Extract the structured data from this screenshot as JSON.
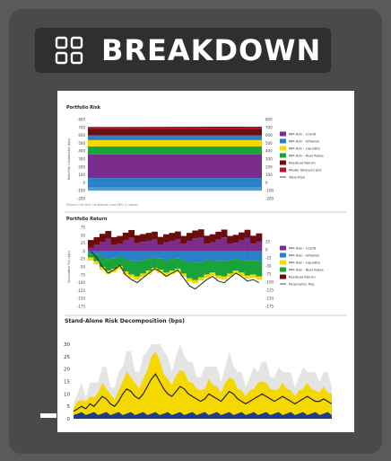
{
  "header": {
    "title": "BREAKDOWN",
    "icon": "grid-icon"
  },
  "colors": {
    "credit": "#7b2d8e",
    "inflation": "#2a7fc9",
    "liquidity": "#f5d800",
    "real_rates": "#1aa33a",
    "residual": "#6b0d0d",
    "model": "#b5122c",
    "total": "#222222"
  },
  "chart_data": [
    {
      "type": "area",
      "title": "Portfolio Risk",
      "ylabel": "Beta Risk Contribution (bps)",
      "footnote": "Product One Year Confidence Level 66% (1 sigma)",
      "ylim": [
        -200,
        800
      ],
      "y_ticks_left": [
        "800",
        "700",
        "600",
        "500",
        "400",
        "300",
        "200",
        "100",
        "0",
        "-100",
        "-200"
      ],
      "y_ticks_right": [
        "800",
        "700",
        "600",
        "500",
        "400",
        "300",
        "200",
        "100",
        "0",
        "-100",
        "-200"
      ],
      "stack": [
        {
          "name": "MM Adv - Inflation",
          "value": -60
        },
        {
          "name": "MM Adv - Inflation",
          "value": 60
        },
        {
          "name": "MM Adv - Credit",
          "value": 300
        },
        {
          "name": "MM Adv - Real Rates",
          "value": 100
        },
        {
          "name": "MM Adv - Liquidity",
          "value": 80
        },
        {
          "name": "MM Adv - Inflation",
          "value": 60
        },
        {
          "name": "Residual Return",
          "value": 80
        },
        {
          "name": "Model Idiosyncratic",
          "value": 20
        }
      ],
      "legend": [
        "MM Adv - Credit",
        "MM Adv - Inflation",
        "MM Adv - Liquidity",
        "MM Adv - Real Rates",
        "Residual Return",
        "Model Idiosyncratic",
        "Total Risk"
      ]
    },
    {
      "type": "bar",
      "title": "Portfolio Return",
      "ylabel": "Cumulative P&L (bps)",
      "ylim": [
        -175,
        75
      ],
      "y_ticks_left": [
        "75",
        "50",
        "25",
        "0",
        "-25",
        "-50",
        "-75",
        "-100",
        "-125",
        "-150",
        "-175"
      ],
      "y_ticks_right": [
        "25",
        "0",
        "-25",
        "-50",
        "-75",
        "-100",
        "-125",
        "-150",
        "-175"
      ],
      "x_ticks": [
        "3-Jan-2015",
        "3-Jan",
        "22-Jan",
        "3-Feb",
        "22-Feb",
        "3-Mar",
        "22-Mar",
        "3-Apr"
      ],
      "pnl": [
        0,
        -20,
        -50,
        -70,
        -60,
        -45,
        -75,
        -90,
        -100,
        -85,
        -70,
        -55,
        -65,
        -80,
        -70,
        -60,
        -85,
        -110,
        -120,
        -105,
        -90,
        -80,
        -95,
        -100,
        -85,
        -70,
        -80,
        -95,
        -90,
        -100
      ],
      "legend": [
        "MM Adv - Credit",
        "MM Adv - Inflation",
        "MM Adv - Liquidity",
        "MM Adv - Real Rates",
        "Residual Return",
        "Parametric P&L"
      ]
    },
    {
      "type": "area",
      "title": "Stand-Alone Risk Decomposition (bps)",
      "ylim": [
        0,
        30
      ],
      "y_ticks": [
        "30",
        "25",
        "20",
        "15",
        "10",
        "5",
        "0"
      ],
      "line": [
        3,
        4,
        5,
        4,
        6,
        5,
        7,
        9,
        8,
        6,
        5,
        7,
        10,
        12,
        11,
        9,
        8,
        10,
        13,
        16,
        18,
        15,
        12,
        10,
        9,
        11,
        13,
        12,
        10,
        9,
        8,
        7,
        8,
        10,
        9,
        8,
        7,
        9,
        11,
        10,
        8,
        7,
        6,
        7,
        8,
        9,
        10,
        9,
        8,
        7,
        8,
        9,
        8,
        7,
        6,
        7,
        8,
        9,
        8,
        7,
        7,
        8,
        7,
        6
      ]
    }
  ]
}
